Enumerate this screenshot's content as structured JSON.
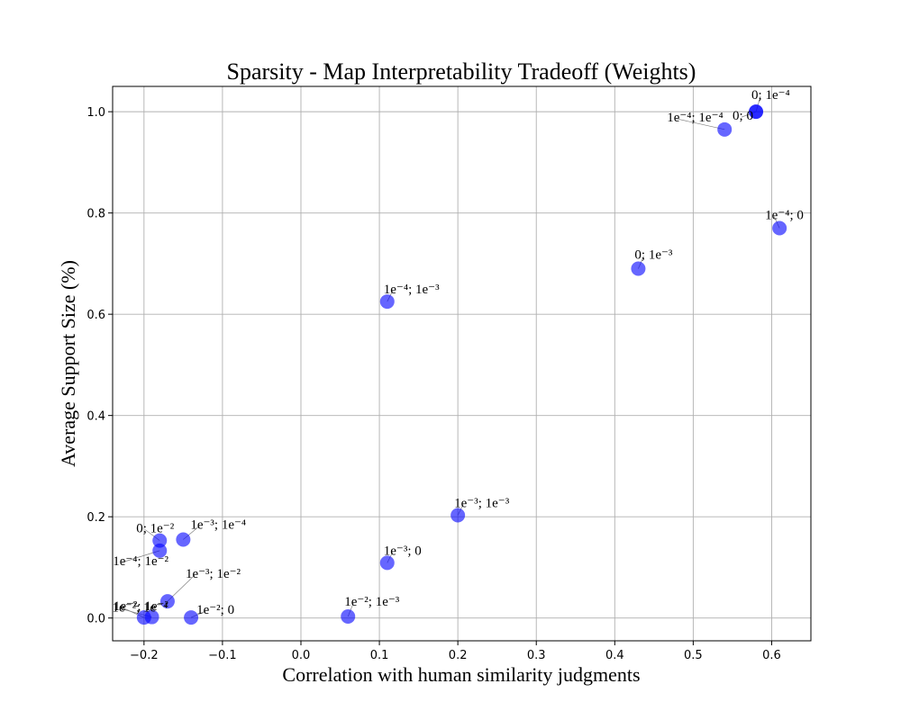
{
  "chart_data": {
    "type": "scatter",
    "title": "Sparsity - Map Interpretability Tradeoff (Weights)",
    "xlabel": "Correlation with human similarity judgments",
    "ylabel": "Average Support Size (%)",
    "xlim": [
      -0.24,
      0.65
    ],
    "ylim": [
      -0.045,
      1.05
    ],
    "xticks": [
      -0.2,
      -0.1,
      0.0,
      0.1,
      0.2,
      0.3,
      0.4,
      0.5,
      0.6
    ],
    "xtick_labels": [
      "−0.2",
      "−0.1",
      "0.0",
      "0.1",
      "0.2",
      "0.3",
      "0.4",
      "0.5",
      "0.6"
    ],
    "yticks": [
      0.0,
      0.2,
      0.4,
      0.6,
      0.8,
      1.0
    ],
    "ytick_labels": [
      "0.0",
      "0.2",
      "0.4",
      "0.6",
      "0.8",
      "1.0"
    ],
    "grid": true,
    "marker_color": "#0000ff",
    "points": [
      {
        "x": 0.58,
        "y": 1.0,
        "label": "0; 1e⁻⁴"
      },
      {
        "x": 0.58,
        "y": 1.0,
        "label": "0; 0"
      },
      {
        "x": 0.54,
        "y": 0.965,
        "label": "1e⁻⁴; 1e⁻⁴"
      },
      {
        "x": 0.61,
        "y": 0.77,
        "label": "1e⁻⁴; 0"
      },
      {
        "x": 0.43,
        "y": 0.69,
        "label": "0; 1e⁻³"
      },
      {
        "x": 0.11,
        "y": 0.625,
        "label": "1e⁻⁴; 1e⁻³"
      },
      {
        "x": 0.2,
        "y": 0.203,
        "label": "1e⁻³; 1e⁻³"
      },
      {
        "x": 0.11,
        "y": 0.109,
        "label": "1e⁻³; 0"
      },
      {
        "x": 0.06,
        "y": 0.003,
        "label": "1e⁻²; 1e⁻³"
      },
      {
        "x": -0.15,
        "y": 0.155,
        "label": "1e⁻³; 1e⁻⁴"
      },
      {
        "x": -0.18,
        "y": 0.153,
        "label": "0; 1e⁻²"
      },
      {
        "x": -0.18,
        "y": 0.133,
        "label": "1e⁻⁴; 1e⁻²"
      },
      {
        "x": -0.17,
        "y": 0.033,
        "label": "1e⁻³; 1e⁻²"
      },
      {
        "x": -0.14,
        "y": 0.001,
        "label": "1e⁻²; 0"
      },
      {
        "x": -0.19,
        "y": 0.002,
        "label": "1e⁻²; 1e⁻⁴"
      },
      {
        "x": -0.2,
        "y": 0.001,
        "label": "1e⁻²; 1e⁻²"
      }
    ]
  }
}
